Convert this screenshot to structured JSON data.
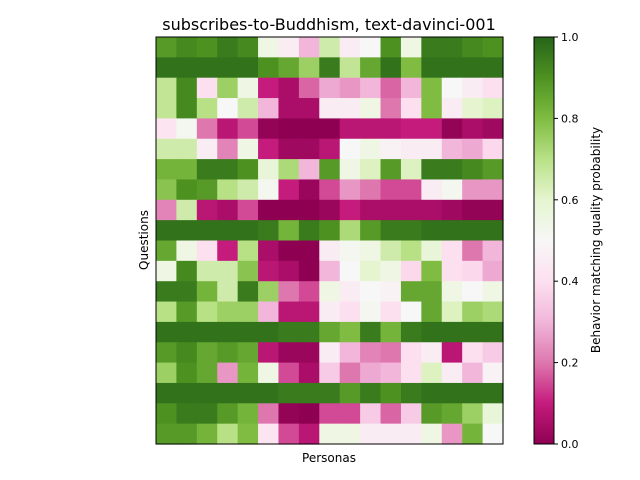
{
  "chart_data": {
    "type": "heatmap",
    "title": "subscribes-to-Buddhism, text-davinci-001",
    "xlabel": "Personas",
    "ylabel": "Questions",
    "colorbar": {
      "label": "Behavior matching quality probability",
      "range": [
        0,
        1
      ],
      "ticks": [
        "0.0",
        "0.2",
        "0.4",
        "0.6",
        "0.8",
        "1.0"
      ],
      "colormap": "PiYG"
    },
    "grid": false,
    "values": [
      [
        0.88,
        0.92,
        0.9,
        0.95,
        0.92,
        0.55,
        0.45,
        0.3,
        0.65,
        0.45,
        0.5,
        0.9,
        0.55,
        0.95,
        0.95,
        0.92,
        0.9
      ],
      [
        0.97,
        0.97,
        0.97,
        0.97,
        0.97,
        0.9,
        0.85,
        0.75,
        0.95,
        0.68,
        0.85,
        0.97,
        0.8,
        0.97,
        0.97,
        0.97,
        0.97
      ],
      [
        0.68,
        0.92,
        0.4,
        0.75,
        0.55,
        0.1,
        0.05,
        0.18,
        0.28,
        0.25,
        0.3,
        0.18,
        0.3,
        0.8,
        0.5,
        0.45,
        0.4
      ],
      [
        0.68,
        0.92,
        0.7,
        0.5,
        0.65,
        0.3,
        0.05,
        0.05,
        0.45,
        0.45,
        0.55,
        0.2,
        0.4,
        0.8,
        0.45,
        0.6,
        0.62
      ],
      [
        0.42,
        0.52,
        0.2,
        0.08,
        0.15,
        0.01,
        0.0,
        0.0,
        0.0,
        0.08,
        0.08,
        0.08,
        0.1,
        0.1,
        0.01,
        0.05,
        0.03
      ],
      [
        0.65,
        0.65,
        0.45,
        0.22,
        0.55,
        0.1,
        0.03,
        0.03,
        0.08,
        0.5,
        0.55,
        0.48,
        0.45,
        0.45,
        0.3,
        0.28,
        0.38
      ],
      [
        0.82,
        0.82,
        0.95,
        0.95,
        0.9,
        0.58,
        0.72,
        0.3,
        0.88,
        0.55,
        0.62,
        0.88,
        0.62,
        0.95,
        0.95,
        0.92,
        0.88
      ],
      [
        0.78,
        0.9,
        0.88,
        0.7,
        0.65,
        0.52,
        0.1,
        0.02,
        0.15,
        0.25,
        0.2,
        0.15,
        0.15,
        0.45,
        0.52,
        0.25,
        0.25
      ],
      [
        0.22,
        0.65,
        0.08,
        0.05,
        0.15,
        0.0,
        0.0,
        0.0,
        0.02,
        0.1,
        0.05,
        0.05,
        0.05,
        0.05,
        0.03,
        0.01,
        0.01
      ],
      [
        0.97,
        0.97,
        0.97,
        0.97,
        0.97,
        0.95,
        0.82,
        0.95,
        0.9,
        0.72,
        0.88,
        0.95,
        0.95,
        0.97,
        0.97,
        0.97,
        0.97
      ],
      [
        0.85,
        0.55,
        0.4,
        0.1,
        0.7,
        0.05,
        0.0,
        0.0,
        0.45,
        0.52,
        0.55,
        0.65,
        0.7,
        0.58,
        0.4,
        0.2,
        0.3
      ],
      [
        0.55,
        0.92,
        0.65,
        0.65,
        0.78,
        0.08,
        0.05,
        0.0,
        0.3,
        0.5,
        0.6,
        0.55,
        0.38,
        0.8,
        0.4,
        0.38,
        0.28
      ],
      [
        0.95,
        0.95,
        0.82,
        0.65,
        0.95,
        0.75,
        0.2,
        0.15,
        0.55,
        0.45,
        0.5,
        0.48,
        0.85,
        0.85,
        0.55,
        0.5,
        0.55
      ],
      [
        0.7,
        0.88,
        0.7,
        0.75,
        0.75,
        0.3,
        0.08,
        0.08,
        0.45,
        0.4,
        0.52,
        0.4,
        0.5,
        0.85,
        0.62,
        0.75,
        0.72
      ],
      [
        0.97,
        0.97,
        0.97,
        0.97,
        0.97,
        0.97,
        0.95,
        0.95,
        0.85,
        0.8,
        0.95,
        0.82,
        0.95,
        0.97,
        0.97,
        0.97,
        0.97
      ],
      [
        0.88,
        0.92,
        0.85,
        0.88,
        0.85,
        0.08,
        0.02,
        0.02,
        0.45,
        0.3,
        0.22,
        0.2,
        0.4,
        0.45,
        0.08,
        0.4,
        0.35
      ],
      [
        0.75,
        0.9,
        0.85,
        0.25,
        0.82,
        0.55,
        0.15,
        0.05,
        0.35,
        0.2,
        0.28,
        0.3,
        0.4,
        0.62,
        0.45,
        0.3,
        0.48
      ],
      [
        0.97,
        0.97,
        0.97,
        0.97,
        0.97,
        0.97,
        0.95,
        0.95,
        0.95,
        0.88,
        0.95,
        0.9,
        0.95,
        0.97,
        0.97,
        0.97,
        0.97
      ],
      [
        0.9,
        0.95,
        0.95,
        0.88,
        0.82,
        0.2,
        0.01,
        0.0,
        0.15,
        0.15,
        0.35,
        0.18,
        0.35,
        0.88,
        0.85,
        0.75,
        0.58
      ],
      [
        0.88,
        0.88,
        0.82,
        0.7,
        0.8,
        0.42,
        0.15,
        0.08,
        0.55,
        0.55,
        0.45,
        0.45,
        0.45,
        0.55,
        0.25,
        0.82,
        0.5
      ]
    ]
  }
}
